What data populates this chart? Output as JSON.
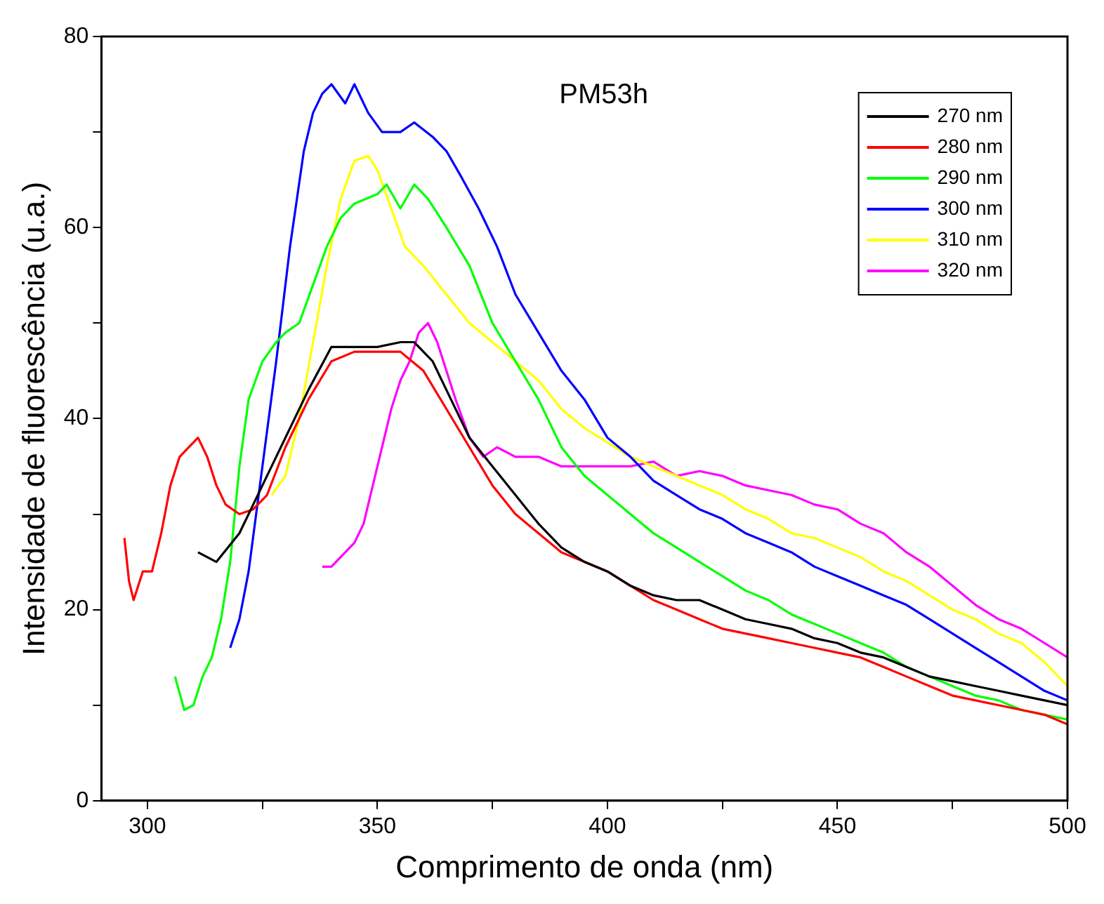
{
  "chart_data": {
    "type": "line",
    "title": "PM53h",
    "xlabel": "Comprimento de onda (nm)",
    "ylabel": "Intensidade de fluorescência (u.a.)",
    "xlim": [
      290,
      500
    ],
    "xticks": [
      300,
      {
        "value": 325,
        "label": null
      },
      350,
      {
        "value": 375,
        "label": null
      },
      400,
      {
        "value": 425,
        "label": null
      },
      450,
      {
        "value": 475,
        "label": null
      },
      500
    ],
    "ylim": [
      0,
      80
    ],
    "yticks": [
      0,
      {
        "value": 10,
        "label": null
      },
      20,
      {
        "value": 30,
        "label": null
      },
      40,
      {
        "value": 50,
        "label": null
      },
      60,
      {
        "value": 70,
        "label": null
      },
      80
    ],
    "grid": false,
    "legend": "top right",
    "marker": "none",
    "line_style": "solid",
    "series": [
      {
        "name": "270 nm",
        "color": "#000000",
        "x": [
          311,
          315,
          320,
          325,
          330,
          335,
          340,
          345,
          350,
          355,
          358,
          362,
          365,
          370,
          375,
          380,
          385,
          390,
          395,
          400,
          405,
          410,
          415,
          420,
          425,
          430,
          435,
          440,
          445,
          450,
          455,
          460,
          465,
          470,
          475,
          480,
          485,
          490,
          495,
          500
        ],
        "values": [
          26,
          25,
          28,
          33,
          38,
          43,
          47.5,
          47.5,
          47.5,
          48,
          48,
          46,
          43,
          38,
          35,
          32,
          29,
          26.5,
          25,
          24,
          22.5,
          21.5,
          21,
          21,
          20,
          19,
          18.5,
          18,
          17,
          16.5,
          15.5,
          15,
          14,
          13,
          12.5,
          12,
          11.5,
          11,
          10.5,
          10
        ]
      },
      {
        "name": "280 nm",
        "color": "#ff0000",
        "x": [
          295,
          296,
          297,
          299,
          301,
          303,
          305,
          307,
          309,
          311,
          313,
          315,
          317,
          320,
          323,
          326,
          330,
          335,
          340,
          345,
          350,
          355,
          360,
          365,
          370,
          375,
          380,
          385,
          390,
          395,
          400,
          405,
          410,
          415,
          420,
          425,
          430,
          435,
          440,
          445,
          450,
          455,
          460,
          465,
          470,
          475,
          480,
          485,
          490,
          495,
          500
        ],
        "values": [
          27.5,
          23,
          21,
          24,
          24,
          28,
          33,
          36,
          37,
          38,
          36,
          33,
          31,
          30,
          30.5,
          32,
          37,
          42,
          46,
          47,
          47,
          47,
          45,
          41,
          37,
          33,
          30,
          28,
          26,
          25,
          24,
          22.5,
          21,
          20,
          19,
          18,
          17.5,
          17,
          16.5,
          16,
          15.5,
          15,
          14,
          13,
          12,
          11,
          10.5,
          10,
          9.5,
          9,
          8
        ]
      },
      {
        "name": "290 nm",
        "color": "#00ff00",
        "x": [
          306,
          308,
          310,
          312,
          314,
          316,
          318,
          320,
          322,
          325,
          328,
          330,
          333,
          336,
          339,
          342,
          345,
          350,
          352,
          355,
          358,
          361,
          365,
          370,
          375,
          380,
          385,
          390,
          395,
          400,
          405,
          410,
          415,
          420,
          425,
          430,
          435,
          440,
          445,
          450,
          455,
          460,
          465,
          470,
          475,
          480,
          485,
          490,
          495,
          500
        ],
        "values": [
          13,
          9.5,
          10,
          13,
          15,
          19,
          25,
          35,
          42,
          46,
          48,
          49,
          50,
          54,
          58,
          61,
          62.5,
          63.5,
          64.5,
          62,
          64.5,
          63,
          60,
          56,
          50,
          46,
          42,
          37,
          34,
          32,
          30,
          28,
          26.5,
          25,
          23.5,
          22,
          21,
          19.5,
          18.5,
          17.5,
          16.5,
          15.5,
          14,
          13,
          12,
          11,
          10.5,
          9.5,
          9,
          8.5
        ]
      },
      {
        "name": "300 nm",
        "color": "#0000ff",
        "x": [
          318,
          320,
          322,
          325,
          328,
          331,
          334,
          336,
          338,
          340,
          343,
          345,
          348,
          351,
          355,
          358,
          362,
          365,
          368,
          372,
          376,
          380,
          385,
          390,
          395,
          400,
          405,
          410,
          415,
          420,
          425,
          430,
          435,
          440,
          445,
          450,
          455,
          460,
          465,
          470,
          475,
          480,
          485,
          490,
          495,
          500
        ],
        "values": [
          16,
          19,
          24,
          35,
          46,
          58,
          68,
          72,
          74,
          75,
          73,
          75,
          72,
          70,
          70,
          71,
          69.5,
          68,
          65.5,
          62,
          58,
          53,
          49,
          45,
          42,
          38,
          36,
          33.5,
          32,
          30.5,
          29.5,
          28,
          27,
          26,
          24.5,
          23.5,
          22.5,
          21.5,
          20.5,
          19,
          17.5,
          16,
          14.5,
          13,
          11.5,
          10.5
        ]
      },
      {
        "name": "310 nm",
        "color": "#ffff00",
        "x": [
          327,
          330,
          333,
          336,
          339,
          342,
          345,
          348,
          350,
          353,
          356,
          360,
          365,
          370,
          375,
          380,
          385,
          390,
          395,
          400,
          405,
          410,
          415,
          420,
          425,
          430,
          435,
          440,
          445,
          450,
          455,
          460,
          465,
          470,
          475,
          480,
          485,
          490,
          495,
          500
        ],
        "values": [
          32,
          34,
          40,
          48,
          56,
          63,
          67,
          67.5,
          66,
          62,
          58,
          56,
          53,
          50,
          48,
          46,
          44,
          41,
          39,
          37.5,
          36,
          35,
          34,
          33,
          32,
          30.5,
          29.5,
          28,
          27.5,
          26.5,
          25.5,
          24,
          23,
          21.5,
          20,
          19,
          17.5,
          16.5,
          14.5,
          12
        ]
      },
      {
        "name": "320 nm",
        "color": "#ff00ff",
        "x": [
          338,
          340,
          343,
          345,
          347,
          349,
          351,
          353,
          355,
          357,
          359,
          361,
          363,
          365,
          367,
          370,
          373,
          376,
          380,
          385,
          390,
          395,
          400,
          405,
          410,
          415,
          420,
          425,
          430,
          435,
          440,
          445,
          450,
          455,
          460,
          465,
          470,
          475,
          480,
          485,
          490,
          495,
          500
        ],
        "values": [
          24.5,
          24.5,
          26,
          27,
          29,
          33,
          37,
          41,
          44,
          46,
          49,
          50,
          48,
          45,
          42,
          38,
          36,
          37,
          36,
          36,
          35,
          35,
          35,
          35,
          35.5,
          34,
          34.5,
          34,
          33,
          32.5,
          32,
          31,
          30.5,
          29,
          28,
          26,
          24.5,
          22.5,
          20.5,
          19,
          18,
          16.5,
          15
        ]
      }
    ]
  }
}
